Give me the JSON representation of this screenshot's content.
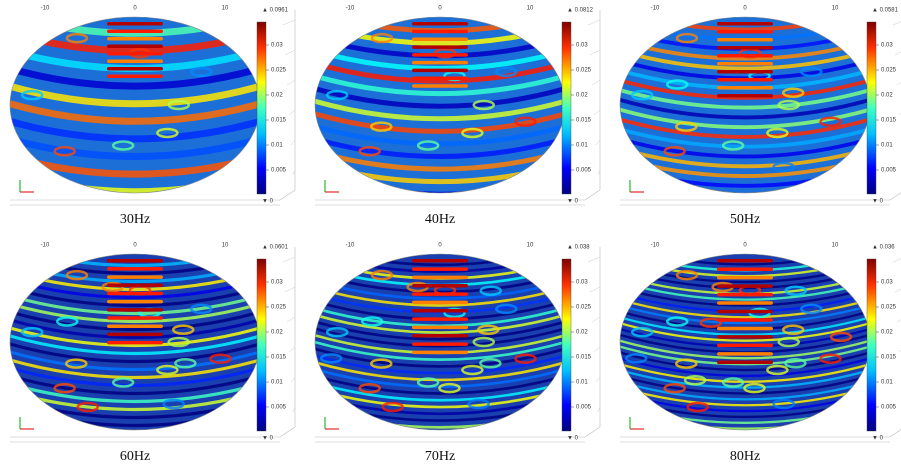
{
  "panels": [
    {
      "caption": "30Hz",
      "max_label": "▲ 0.0961",
      "min_label": "▼ 0",
      "axis_labels": [
        "-10",
        "0",
        "10"
      ],
      "colorbar_ticks": [
        "0.03",
        "0.025",
        "0.02",
        "0.015",
        "0.01",
        "0.005"
      ]
    },
    {
      "caption": "40Hz",
      "max_label": "▲ 0.0812",
      "min_label": "▼ 0",
      "axis_labels": [
        "-10",
        "0",
        "10"
      ],
      "colorbar_ticks": [
        "0.03",
        "0.025",
        "0.02",
        "0.015",
        "0.01",
        "0.005"
      ]
    },
    {
      "caption": "50Hz",
      "max_label": "▲ 0.0581",
      "min_label": "▼ 0",
      "axis_labels": [
        "-10",
        "0",
        "10"
      ],
      "colorbar_ticks": [
        "0.03",
        "0.025",
        "0.02",
        "0.015",
        "0.01",
        "0.005"
      ]
    },
    {
      "caption": "60Hz",
      "max_label": "▲ 0.0601",
      "min_label": "▼ 0",
      "axis_labels": [
        "-10",
        "0",
        "10"
      ],
      "colorbar_ticks": [
        "0.03",
        "0.025",
        "0.02",
        "0.015",
        "0.01",
        "0.005"
      ]
    },
    {
      "caption": "70Hz",
      "max_label": "▲ 0.038",
      "min_label": "▼ 0",
      "axis_labels": [
        "-10",
        "0",
        "10"
      ],
      "colorbar_ticks": [
        "0.03",
        "0.025",
        "0.02",
        "0.015",
        "0.01",
        "0.005"
      ]
    },
    {
      "caption": "80Hz",
      "max_label": "▲ 0.036",
      "min_label": "▼ 0",
      "axis_labels": [
        "-10",
        "0",
        "10"
      ],
      "colorbar_ticks": [
        "0.03",
        "0.025",
        "0.02",
        "0.015",
        "0.01",
        "0.005"
      ]
    }
  ]
}
